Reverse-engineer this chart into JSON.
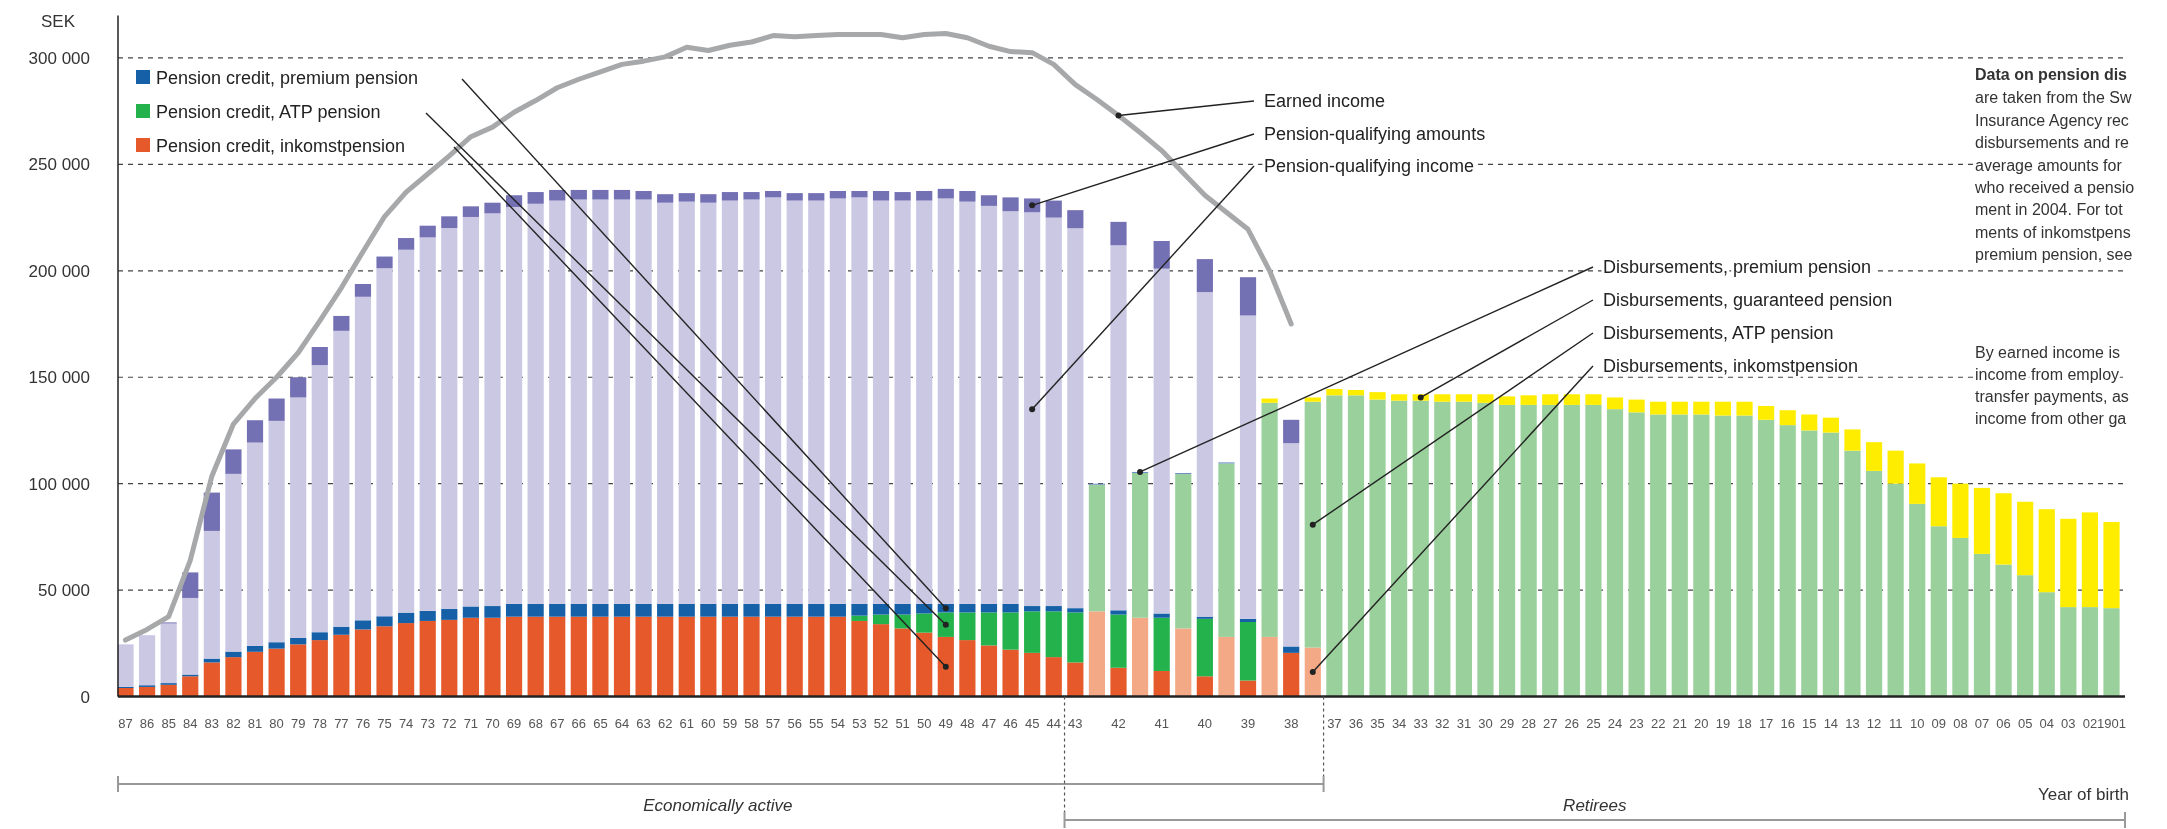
{
  "chart_data": {
    "type": "bar",
    "stacked": true,
    "ylabel": "SEK",
    "xlabel": "Year of birth",
    "grid": "y",
    "legend": "top left",
    "categories": [
      "87",
      "86",
      "85",
      "84",
      "83",
      "82",
      "81",
      "80",
      "79",
      "78",
      "77",
      "76",
      "75",
      "74",
      "73",
      "72",
      "71",
      "70",
      "69",
      "68",
      "67",
      "66",
      "65",
      "64",
      "63",
      "62",
      "61",
      "60",
      "59",
      "58",
      "57",
      "56",
      "55",
      "54",
      "53",
      "52",
      "51",
      "50",
      "49",
      "48",
      "47",
      "46",
      "45",
      "44",
      "43",
      null,
      "42",
      null,
      "41",
      null,
      "40",
      null,
      "39",
      null,
      "38",
      null,
      "37",
      "36",
      "35",
      "34",
      "33",
      "32",
      "31",
      "30",
      "29",
      "28",
      "27",
      "26",
      "25",
      "24",
      "23",
      "22",
      "21",
      "20",
      "19",
      "18",
      "17",
      "16",
      "15",
      "14",
      "13",
      "12",
      "11",
      "10",
      "09",
      "08",
      "07",
      "06",
      "05",
      "04",
      "03",
      "02",
      "1901"
    ],
    "ylim": [
      0,
      320000
    ],
    "yticks": [
      0,
      {
        "value": 50000,
        "label": "50 000"
      },
      {
        "value": 100000,
        "label": "100 000"
      },
      {
        "value": 150000,
        "label": "150 000"
      },
      {
        "value": 200000,
        "label": "200 000"
      },
      {
        "value": 250000,
        "label": "250 000"
      },
      {
        "value": 300000,
        "label": "300 000"
      }
    ],
    "series": [
      {
        "name": "Pension credit, inkomstpension",
        "color": "#e5592b",
        "values": [
          4000,
          4500,
          5500,
          9500,
          16000,
          18500,
          21000,
          22500,
          24500,
          26500,
          29000,
          31500,
          33000,
          34500,
          35500,
          36000,
          37000,
          37000,
          37500,
          37500,
          37500,
          37500,
          37500,
          37500,
          37500,
          37500,
          37500,
          37500,
          37500,
          37500,
          37500,
          37500,
          37500,
          37500,
          35500,
          34000,
          32000,
          30000,
          28000,
          26500,
          24000,
          22000,
          20500,
          18500,
          16000,
          null,
          13500,
          null,
          12000,
          null,
          9500,
          null,
          7500,
          null,
          20500,
          null,
          null,
          null,
          null,
          null,
          null,
          null,
          null,
          null,
          null,
          null,
          null,
          null,
          null,
          null,
          null,
          null,
          null,
          null,
          null,
          null,
          null,
          null,
          null,
          null,
          null,
          null,
          null,
          null,
          null,
          null,
          null,
          null,
          null,
          null,
          null,
          null,
          null
        ]
      },
      {
        "name": "Pension credit, ATP pension",
        "color": "#23b24b",
        "values": [
          null,
          null,
          null,
          null,
          null,
          null,
          null,
          null,
          null,
          null,
          null,
          null,
          null,
          null,
          null,
          null,
          null,
          null,
          null,
          null,
          null,
          null,
          null,
          null,
          null,
          null,
          null,
          null,
          null,
          null,
          null,
          null,
          null,
          null,
          2500,
          4500,
          6500,
          9000,
          11500,
          13000,
          15500,
          17500,
          19500,
          21500,
          23500,
          null,
          25000,
          null,
          25000,
          null,
          27000,
          null,
          27500,
          null,
          null,
          null,
          null,
          null,
          null,
          null,
          null,
          null,
          null,
          null,
          null,
          null,
          null,
          null,
          null,
          null,
          null,
          null,
          null,
          null,
          null,
          null,
          null,
          null,
          null,
          null,
          null,
          null,
          null,
          null,
          null,
          null,
          null,
          null,
          null,
          null,
          null,
          null,
          null
        ]
      },
      {
        "name": "Pension credit, premium pension",
        "color": "#1660a8",
        "values": [
          500,
          800,
          800,
          800,
          1800,
          2600,
          2800,
          3000,
          3000,
          3700,
          3800,
          4300,
          4700,
          4900,
          4700,
          5100,
          5300,
          5500,
          6000,
          6000,
          6000,
          6000,
          6000,
          6000,
          6000,
          6000,
          6000,
          6000,
          6000,
          6000,
          6000,
          6000,
          6000,
          6000,
          5500,
          5000,
          5000,
          4500,
          4000,
          4000,
          4000,
          4000,
          2500,
          2500,
          2000,
          null,
          2000,
          null,
          2000,
          null,
          1000,
          null,
          1500,
          null,
          3000,
          null,
          null,
          null,
          null,
          null,
          null,
          null,
          null,
          null,
          null,
          null,
          null,
          null,
          null,
          null,
          null,
          null,
          null,
          null,
          null,
          null,
          null,
          null,
          null,
          null,
          null,
          null,
          null,
          null,
          null,
          null,
          null,
          null,
          null,
          null,
          null,
          null,
          null
        ]
      },
      {
        "name": "Pension-qualifying income",
        "color": "#cbc8e4",
        "values": [
          20000,
          23500,
          28000,
          36000,
          60000,
          83500,
          95500,
          104000,
          113000,
          125500,
          139000,
          152000,
          163500,
          170500,
          175500,
          179000,
          183000,
          184500,
          186500,
          188000,
          189500,
          190000,
          190000,
          190000,
          190000,
          188500,
          189000,
          188500,
          189500,
          190000,
          191000,
          189500,
          189500,
          190500,
          191000,
          189500,
          189500,
          189500,
          190500,
          189000,
          187000,
          184500,
          185000,
          182500,
          178500,
          null,
          171500,
          null,
          162000,
          null,
          152500,
          null,
          142500,
          null,
          95500,
          null,
          null,
          null,
          null,
          null,
          null,
          null,
          null,
          null,
          null,
          null,
          null,
          null,
          null,
          null,
          null,
          null,
          null,
          null,
          null,
          null,
          null,
          null,
          null,
          null,
          null,
          null,
          null,
          null,
          null,
          null,
          null,
          null,
          null,
          null,
          null,
          null,
          null
        ]
      },
      {
        "name": "Pension-qualifying amounts",
        "color": "#7470b4",
        "values": [
          null,
          null,
          500,
          12000,
          18000,
          11500,
          10500,
          10500,
          9500,
          8500,
          7000,
          6000,
          5500,
          5500,
          5500,
          5500,
          5000,
          5000,
          5500,
          5500,
          5000,
          4500,
          4500,
          4500,
          4000,
          4000,
          4000,
          4000,
          4000,
          3500,
          3000,
          3500,
          3500,
          3500,
          3000,
          4500,
          4000,
          4500,
          4500,
          5000,
          5000,
          6500,
          6500,
          8000,
          8500,
          null,
          11000,
          null,
          13000,
          null,
          15500,
          null,
          18000,
          null,
          11000,
          null,
          null,
          null,
          null,
          null,
          null,
          null,
          null,
          null,
          null,
          null,
          null,
          null,
          null,
          null,
          null,
          null,
          null,
          null,
          null,
          null,
          null,
          null,
          null,
          null,
          null,
          null,
          null,
          null,
          null,
          null,
          null,
          null,
          null,
          null,
          null,
          null,
          null
        ]
      },
      {
        "name": "Disbursements, inkomstpension",
        "color": "#f3a986",
        "values": [
          null,
          null,
          null,
          null,
          null,
          null,
          null,
          null,
          null,
          null,
          null,
          null,
          null,
          null,
          null,
          null,
          null,
          null,
          null,
          null,
          null,
          null,
          null,
          null,
          null,
          null,
          null,
          null,
          null,
          null,
          null,
          null,
          null,
          null,
          null,
          null,
          null,
          null,
          null,
          null,
          null,
          null,
          null,
          null,
          null,
          40000,
          null,
          37000,
          null,
          32000,
          null,
          28000,
          null,
          28000,
          null,
          23000,
          null,
          null,
          null,
          null,
          null,
          null,
          null,
          null,
          null,
          null,
          null,
          null,
          null,
          null,
          null,
          null,
          null,
          null,
          null,
          null,
          null,
          null,
          null,
          null,
          null,
          null,
          null,
          null,
          null,
          null,
          null,
          null,
          null,
          null,
          null,
          null,
          null
        ]
      },
      {
        "name": "Disbursements, ATP pension",
        "color": "#9ad09c",
        "values": [
          null,
          null,
          null,
          null,
          null,
          null,
          null,
          null,
          null,
          null,
          null,
          null,
          null,
          null,
          null,
          null,
          null,
          null,
          null,
          null,
          null,
          null,
          null,
          null,
          null,
          null,
          null,
          null,
          null,
          null,
          null,
          null,
          null,
          null,
          null,
          null,
          null,
          null,
          null,
          null,
          null,
          null,
          null,
          null,
          null,
          59500,
          null,
          68000,
          null,
          72500,
          null,
          81500,
          null,
          110000,
          null,
          115500,
          141500,
          141500,
          139500,
          139000,
          139000,
          138500,
          138500,
          138000,
          137000,
          137000,
          137000,
          137000,
          137000,
          135000,
          133500,
          132500,
          132500,
          132500,
          132000,
          132000,
          130000,
          127500,
          125000,
          124000,
          115500,
          106000,
          100000,
          90500,
          80000,
          74500,
          67000,
          62000,
          57000,
          49000,
          42000,
          42000,
          41500
        ]
      },
      {
        "name": "Disbursements, premium pension",
        "color": "#6f8fc8",
        "values": [
          null,
          null,
          null,
          null,
          null,
          null,
          null,
          null,
          null,
          null,
          null,
          null,
          null,
          null,
          null,
          null,
          null,
          null,
          null,
          null,
          null,
          null,
          null,
          null,
          null,
          null,
          null,
          null,
          null,
          null,
          null,
          null,
          null,
          null,
          null,
          null,
          null,
          null,
          null,
          null,
          null,
          null,
          null,
          null,
          null,
          500,
          null,
          500,
          null,
          500,
          null,
          500,
          null,
          null,
          null,
          null,
          null,
          null,
          null,
          null,
          null,
          null,
          null,
          null,
          null,
          null,
          null,
          null,
          null,
          null,
          null,
          null,
          null,
          null,
          null,
          null,
          null,
          null,
          null,
          null,
          null,
          null,
          null,
          null,
          null,
          null,
          null,
          null,
          null,
          null,
          null,
          null,
          null
        ]
      },
      {
        "name": "Disbursements, guaranteed pension",
        "color": "#ffed00",
        "values": [
          null,
          null,
          null,
          null,
          null,
          null,
          null,
          null,
          null,
          null,
          null,
          null,
          null,
          null,
          null,
          null,
          null,
          null,
          null,
          null,
          null,
          null,
          null,
          null,
          null,
          null,
          null,
          null,
          null,
          null,
          null,
          null,
          null,
          null,
          null,
          null,
          null,
          null,
          null,
          null,
          null,
          null,
          null,
          null,
          null,
          null,
          null,
          null,
          null,
          null,
          null,
          null,
          null,
          2000,
          null,
          2000,
          3000,
          2500,
          3500,
          3000,
          3000,
          3500,
          3500,
          4000,
          4000,
          4500,
          5000,
          5000,
          5000,
          5500,
          6000,
          6000,
          6000,
          6000,
          6500,
          6500,
          6500,
          7000,
          7500,
          7000,
          10000,
          13500,
          15500,
          19000,
          23000,
          25500,
          31000,
          33500,
          34500,
          39000,
          41500,
          44500,
          40500
        ]
      },
      {
        "name": "Earned income",
        "type": "line",
        "color": "#a7a8aa",
        "values": [
          26500,
          31500,
          37500,
          64000,
          103500,
          128000,
          140000,
          150000,
          161500,
          176500,
          192000,
          209000,
          225500,
          237000,
          245500,
          254000,
          263000,
          267500,
          274500,
          280000,
          286000,
          290000,
          293500,
          297000,
          298500,
          300500,
          305000,
          303500,
          306000,
          307500,
          310500,
          310000,
          310500,
          311000,
          311000,
          311000,
          309500,
          311000,
          311500,
          309500,
          305500,
          303000,
          302500,
          297000,
          287500,
          280500,
          273000,
          265000,
          256500,
          246000,
          235500,
          227500,
          219500,
          200000,
          175000,
          null,
          null,
          null,
          null,
          null,
          null,
          null,
          null,
          null,
          null,
          null,
          null,
          null,
          null,
          null,
          null,
          null,
          null,
          null,
          null,
          null,
          null,
          null,
          null,
          null,
          null,
          null,
          null,
          null,
          null,
          null,
          null,
          null,
          null,
          null,
          null,
          null,
          null
        ]
      }
    ],
    "annotations": [
      "Data on pension dis",
      "are taken from the Sw",
      "Insurance Agency rec",
      "disbursements and re",
      "average amounts for",
      "who received a pensio",
      "ment in 2004. For tot",
      "ments of inkomstpens",
      "premium pension, see",
      "By earned income is",
      "income from employ",
      "transfer payments, as",
      "income from other ga",
      "Economically active",
      "Retirees"
    ]
  }
}
